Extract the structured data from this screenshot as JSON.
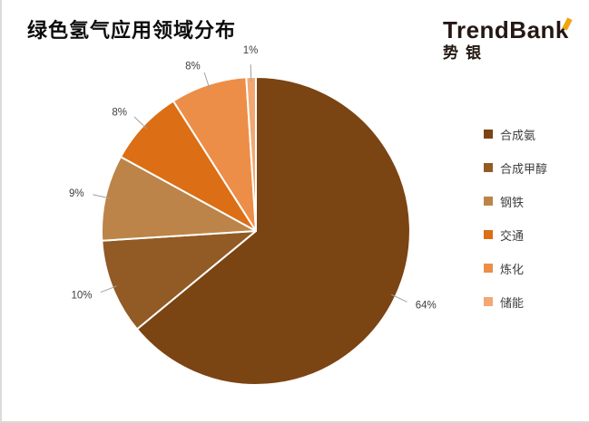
{
  "page": {
    "title": "绿色氢气应用领域分布",
    "logo": {
      "wordmark_main": "TrendBan",
      "wordmark_accent": "k",
      "chinese": "势银"
    }
  },
  "chart_data": {
    "type": "pie",
    "title": "绿色氢气应用领域分布",
    "legend_position": "right",
    "start_angle_deg": 0,
    "direction": "clockwise",
    "data_labels": "percent-outside",
    "label_color": "#3f3f3f",
    "leader_line_color": "#a0a0a0",
    "slices": [
      {
        "id": "synthetic-ammonia",
        "name": "合成氨",
        "value": 64,
        "label": "64%",
        "color": "#7B4413"
      },
      {
        "id": "synthetic-methanol",
        "name": "合成甲醇",
        "value": 10,
        "label": "10%",
        "color": "#925A24"
      },
      {
        "id": "steel",
        "name": "钢铁",
        "value": 9,
        "label": "9%",
        "color": "#BC8449"
      },
      {
        "id": "transportation",
        "name": "交通",
        "value": 8,
        "label": "8%",
        "color": "#DC6E15"
      },
      {
        "id": "refining",
        "name": "炼化",
        "value": 8,
        "label": "8%",
        "color": "#EC8E48"
      },
      {
        "id": "energy-storage",
        "name": "储能",
        "value": 1,
        "label": "1%",
        "color": "#F2A873"
      }
    ]
  }
}
